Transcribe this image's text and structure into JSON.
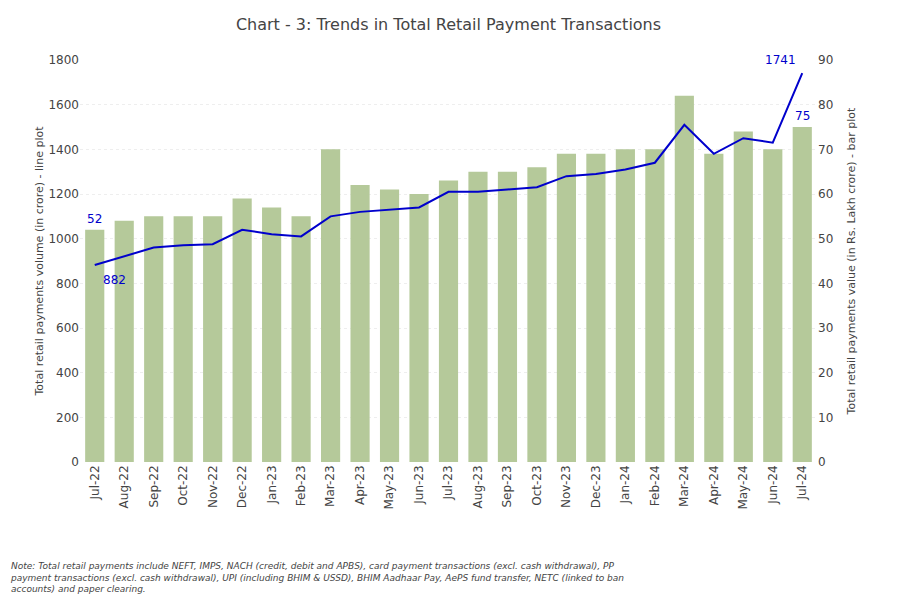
{
  "chart_data": {
    "type": "bar",
    "title": "Chart - 3: Trends in Total Retail Payment Transactions",
    "categories": [
      "Jul-22",
      "Aug-22",
      "Sep-22",
      "Oct-22",
      "Nov-22",
      "Dec-22",
      "Jan-23",
      "Feb-23",
      "Mar-23",
      "Apr-23",
      "May-23",
      "Jun-23",
      "Jul-23",
      "Aug-23",
      "Sep-23",
      "Oct-23",
      "Nov-23",
      "Dec-23",
      "Jan-24",
      "Feb-24",
      "Mar-24",
      "Apr-24",
      "May-24",
      "Jun-24",
      "Jul-24"
    ],
    "series": [
      {
        "type": "bar",
        "axis": "y2",
        "color": "#b5c99a",
        "values": [
          52,
          54,
          55,
          55,
          55,
          59,
          57,
          55,
          70,
          62,
          61,
          60,
          63,
          65,
          65,
          66,
          69,
          69,
          70,
          70,
          82,
          69,
          74,
          70,
          75
        ]
      },
      {
        "type": "line",
        "color": "#0000cc",
        "values": [
          882,
          920,
          960,
          970,
          975,
          1040,
          1020,
          1010,
          1100,
          1120,
          1130,
          1140,
          1210,
          1210,
          1220,
          1230,
          1280,
          1290,
          1310,
          1340,
          1510,
          1380,
          1450,
          1430,
          1741
        ]
      }
    ],
    "ylabel": "Total retail payments volume (in crore) - line plot",
    "y2label": "Total retail payments value (in Rs. Lakh crore) - bar plot",
    "ylim": [
      0,
      1800
    ],
    "yticks": [
      0,
      200,
      400,
      600,
      800,
      1000,
      1200,
      1400,
      1600,
      1800
    ],
    "y2lim": [
      0,
      90
    ],
    "y2ticks": [
      0,
      10,
      20,
      30,
      40,
      50,
      60,
      70,
      80,
      90
    ],
    "grid": true,
    "annotations": [
      {
        "text": "52",
        "x": "Jul-22",
        "y": 52,
        "axis": "y2"
      },
      {
        "text": "882",
        "x": "Jul-22",
        "y": 882
      },
      {
        "text": "1741",
        "x": "Jul-24",
        "y": 1741
      },
      {
        "text": "75",
        "x": "Jul-24",
        "y": 75,
        "axis": "y2"
      }
    ],
    "note": "Note: Total retail payments include NEFT, IMPS, NACH (credit, debit and APBS), card payment transactions (excl. cash withdrawal), PP\npayment transactions (excl. cash withdrawal), UPI (including BHIM & USSD), BHIM Aadhaar Pay, AePS fund transfer, NETC (linked to ban\naccounts) and paper clearing."
  }
}
